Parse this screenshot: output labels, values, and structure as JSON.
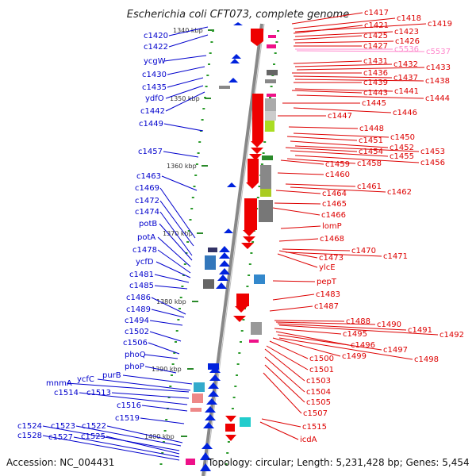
{
  "title": "Escherichia coli CFT073, complete genome",
  "accession": "Accession: NC_004431",
  "summary": "Topology: circular; Length: 5,231,428 bp; Genes: 5,454",
  "colors": {
    "forward": "#0000cc",
    "reverse": "#dd0000",
    "pseudo": "#ff88cc",
    "backbone": "#888888"
  },
  "kbp_markers": [
    "1340 kbp",
    "1350 kbp",
    "1360 kbp",
    "1370 kbp",
    "1380 kbp",
    "1390 kbp",
    "1400 kbp"
  ],
  "left_genes": [
    "c1420",
    "c1422",
    "ycgW",
    "c1430",
    "c1435",
    "ydfO",
    "c1442",
    "c1449",
    "c1457",
    "c1463",
    "c1469",
    "c1472",
    "c1474",
    "potB",
    "potA",
    "c1478",
    "ycfD",
    "c1481",
    "c1485",
    "c1486",
    "c1489",
    "c1494",
    "c1502",
    "c1506",
    "phoQ",
    "phoP",
    "purB",
    "ycfC",
    "mnmA",
    "c1513",
    "c1514",
    "c1516",
    "c1519",
    "c1522",
    "c1523",
    "c1524",
    "c1525",
    "c1527",
    "c1528"
  ],
  "right_genes": [
    "c1417",
    "c1418",
    "c1419",
    "c1421",
    "c1423",
    "c1425",
    "c1426",
    "c1427",
    "c5536",
    "c5537",
    "c1431",
    "c1432",
    "c1433",
    "c1436",
    "c1437",
    "c1438",
    "c1439",
    "c1441",
    "c1443",
    "c1444",
    "c1445",
    "c1446",
    "c1447",
    "c1448",
    "c1450",
    "c1451",
    "c1452",
    "c1453",
    "c1454",
    "c1455",
    "c1456",
    "c1458",
    "c1459",
    "c1460",
    "c1461",
    "c1462",
    "c1464",
    "c1465",
    "c1466",
    "lomP",
    "c1468",
    "c1470",
    "c1471",
    "c1473",
    "ylcE",
    "pepT",
    "c1483",
    "c1487",
    "c1488",
    "c1490",
    "c1491",
    "c1492",
    "c1495",
    "c1496",
    "c1497",
    "c1498",
    "c1499",
    "c1500",
    "c1501",
    "c1503",
    "c1504",
    "c1505",
    "c1507",
    "c1515",
    "icdA"
  ]
}
